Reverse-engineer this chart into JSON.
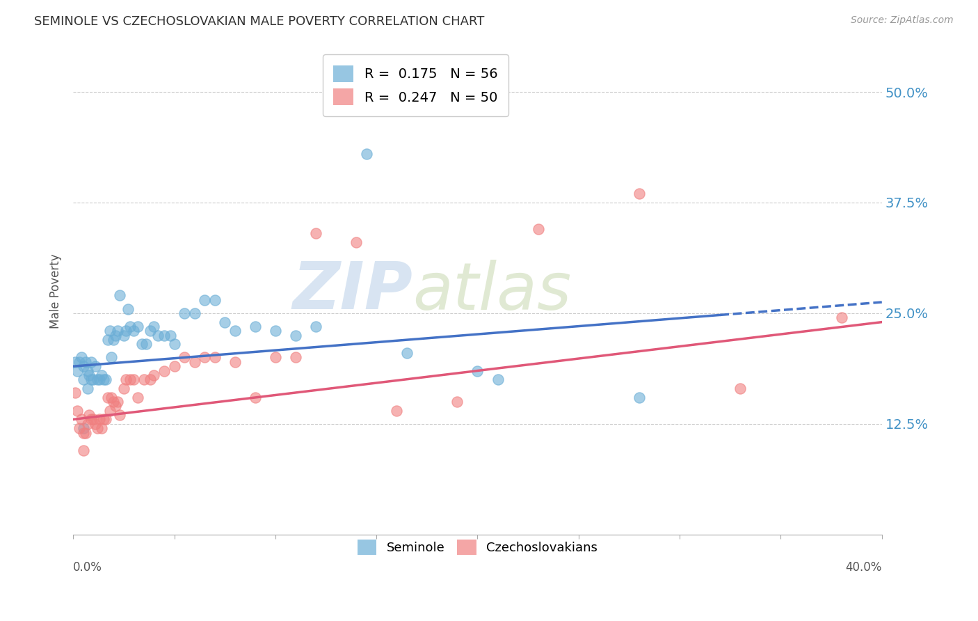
{
  "title": "SEMINOLE VS CZECHOSLOVAKIAN MALE POVERTY CORRELATION CHART",
  "source_text": "Source: ZipAtlas.com",
  "ylabel": "Male Poverty",
  "r_seminole": 0.175,
  "n_seminole": 56,
  "r_czech": 0.247,
  "n_czech": 50,
  "seminole_color": "#6baed6",
  "czech_color": "#f08080",
  "seminole_line_color": "#4472c6",
  "czech_line_color": "#e05878",
  "watermark_zip": "ZIP",
  "watermark_atlas": "atlas",
  "watermark_color_zip": "#b8cfe8",
  "watermark_color_atlas": "#c8d8b0",
  "ytick_labels": [
    "12.5%",
    "25.0%",
    "37.5%",
    "50.0%"
  ],
  "ytick_values": [
    0.125,
    0.25,
    0.375,
    0.5
  ],
  "xmin": 0.0,
  "xmax": 0.4,
  "ymin": 0.0,
  "ymax": 0.55,
  "seminole_line_x0": 0.0,
  "seminole_line_y0": 0.19,
  "seminole_line_x1": 0.32,
  "seminole_line_y1": 0.248,
  "czech_line_x0": 0.0,
  "czech_line_y0": 0.13,
  "czech_line_x1": 0.4,
  "czech_line_y1": 0.24,
  "seminole_x": [
    0.001,
    0.002,
    0.003,
    0.004,
    0.005,
    0.005,
    0.006,
    0.007,
    0.007,
    0.008,
    0.009,
    0.009,
    0.01,
    0.011,
    0.012,
    0.013,
    0.014,
    0.015,
    0.016,
    0.017,
    0.018,
    0.019,
    0.02,
    0.021,
    0.022,
    0.023,
    0.025,
    0.026,
    0.027,
    0.028,
    0.03,
    0.032,
    0.034,
    0.036,
    0.038,
    0.04,
    0.042,
    0.045,
    0.048,
    0.05,
    0.055,
    0.06,
    0.065,
    0.07,
    0.075,
    0.08,
    0.09,
    0.1,
    0.11,
    0.12,
    0.145,
    0.165,
    0.2,
    0.21,
    0.28,
    0.005
  ],
  "seminole_y": [
    0.195,
    0.185,
    0.195,
    0.2,
    0.19,
    0.175,
    0.195,
    0.165,
    0.185,
    0.18,
    0.195,
    0.175,
    0.175,
    0.19,
    0.175,
    0.175,
    0.18,
    0.175,
    0.175,
    0.22,
    0.23,
    0.2,
    0.22,
    0.225,
    0.23,
    0.27,
    0.225,
    0.23,
    0.255,
    0.235,
    0.23,
    0.235,
    0.215,
    0.215,
    0.23,
    0.235,
    0.225,
    0.225,
    0.225,
    0.215,
    0.25,
    0.25,
    0.265,
    0.265,
    0.24,
    0.23,
    0.235,
    0.23,
    0.225,
    0.235,
    0.43,
    0.205,
    0.185,
    0.175,
    0.155,
    0.12
  ],
  "czech_x": [
    0.001,
    0.002,
    0.003,
    0.004,
    0.005,
    0.006,
    0.007,
    0.008,
    0.009,
    0.01,
    0.011,
    0.012,
    0.013,
    0.014,
    0.015,
    0.016,
    0.017,
    0.018,
    0.019,
    0.02,
    0.021,
    0.022,
    0.023,
    0.025,
    0.026,
    0.028,
    0.03,
    0.032,
    0.035,
    0.038,
    0.04,
    0.045,
    0.05,
    0.055,
    0.06,
    0.065,
    0.07,
    0.08,
    0.09,
    0.1,
    0.11,
    0.12,
    0.14,
    0.16,
    0.19,
    0.23,
    0.28,
    0.33,
    0.38,
    0.005
  ],
  "czech_y": [
    0.16,
    0.14,
    0.12,
    0.13,
    0.115,
    0.115,
    0.125,
    0.135,
    0.13,
    0.13,
    0.125,
    0.12,
    0.13,
    0.12,
    0.13,
    0.13,
    0.155,
    0.14,
    0.155,
    0.15,
    0.145,
    0.15,
    0.135,
    0.165,
    0.175,
    0.175,
    0.175,
    0.155,
    0.175,
    0.175,
    0.18,
    0.185,
    0.19,
    0.2,
    0.195,
    0.2,
    0.2,
    0.195,
    0.155,
    0.2,
    0.2,
    0.34,
    0.33,
    0.14,
    0.15,
    0.345,
    0.385,
    0.165,
    0.245,
    0.095
  ]
}
